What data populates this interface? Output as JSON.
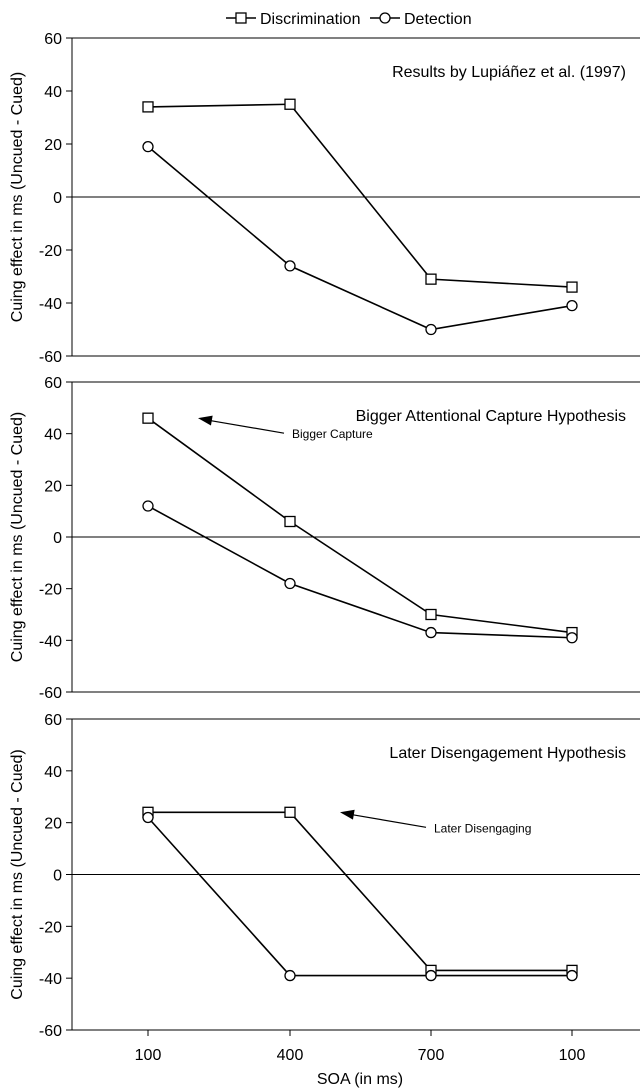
{
  "legend": {
    "items": [
      {
        "label": "Discrimination",
        "marker": "square"
      },
      {
        "label": "Detection",
        "marker": "circle"
      }
    ]
  },
  "x_axis_label": "SOA (in ms)",
  "chart_data": [
    {
      "type": "line",
      "title": "Results by Lupiáñez et al. (1997)",
      "categories": [
        "100",
        "400",
        "700",
        "100"
      ],
      "ylabel": "Cuing effect in ms (Uncued - Cued)",
      "ylim": [
        -60,
        60
      ],
      "yticks": [
        60,
        40,
        20,
        0,
        -20,
        -40,
        -60
      ],
      "series": [
        {
          "name": "Discrimination",
          "marker": "square",
          "values": [
            34,
            35,
            -31,
            -34
          ]
        },
        {
          "name": "Detection",
          "marker": "circle",
          "values": [
            19,
            -26,
            -50,
            -41
          ]
        }
      ],
      "annotation": null
    },
    {
      "type": "line",
      "title": "Bigger Attentional Capture Hypothesis",
      "categories": [
        "100",
        "400",
        "700",
        "100"
      ],
      "ylabel": "Cuing effect in ms (Uncued - Cued)",
      "ylim": [
        -60,
        60
      ],
      "yticks": [
        60,
        40,
        20,
        0,
        -20,
        -40,
        -60
      ],
      "series": [
        {
          "name": "Discrimination",
          "marker": "square",
          "values": [
            46,
            6,
            -30,
            -37
          ]
        },
        {
          "name": "Detection",
          "marker": "circle",
          "values": [
            12,
            -18,
            -37,
            -39
          ]
        }
      ],
      "annotation": {
        "text": "Bigger Capture",
        "target_series": 0,
        "target_index": 0
      }
    },
    {
      "type": "line",
      "title": "Later Disengagement Hypothesis",
      "categories": [
        "100",
        "400",
        "700",
        "100"
      ],
      "xlabel": "SOA (in ms)",
      "ylabel": "Cuing effect in ms (Uncued - Cued)",
      "ylim": [
        -60,
        60
      ],
      "yticks": [
        60,
        40,
        20,
        0,
        -20,
        -40,
        -60
      ],
      "series": [
        {
          "name": "Discrimination",
          "marker": "square",
          "values": [
            24,
            24,
            -37,
            -37
          ]
        },
        {
          "name": "Detection",
          "marker": "circle",
          "values": [
            22,
            -39,
            -39,
            -39
          ]
        }
      ],
      "annotation": {
        "text": "Later Disengaging",
        "target_series": 0,
        "target_index": 1
      }
    }
  ]
}
